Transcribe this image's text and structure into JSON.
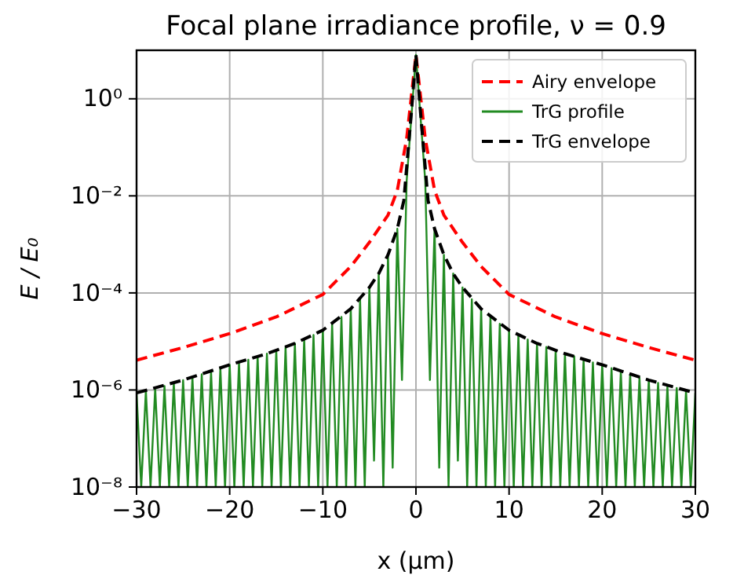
{
  "chart_data": {
    "type": "line",
    "title": "Focal plane irradiance profile, ν = 0.9",
    "xlabel": "x (μm)",
    "ylabel": "E / E₀",
    "log": "y",
    "grid": true,
    "legend": "top right",
    "xlim": [
      -30,
      30
    ],
    "xticks": [
      {
        "value": -30,
        "label": "−30"
      },
      {
        "value": -20,
        "label": "−20"
      },
      {
        "value": -10,
        "label": "−10"
      },
      0,
      10,
      20,
      30
    ],
    "ylim": [
      1e-08,
      10
    ],
    "yticks": [
      {
        "value": 1e-08,
        "label": "10⁻⁸"
      },
      {
        "value": 1e-06,
        "label": "10⁻⁶"
      },
      {
        "value": 0.0001,
        "label": "10⁻⁴"
      },
      {
        "value": 0.01,
        "label": "10⁻²"
      },
      {
        "value": 1,
        "label": "10⁰"
      }
    ],
    "series": [
      {
        "name": "Airy envelope",
        "color": "#ff0000",
        "line_style": "dashed",
        "x": [
          -30,
          -25,
          -20,
          -15,
          -10,
          -7,
          -5,
          -3,
          -2,
          -1,
          0,
          1,
          2,
          3,
          5,
          7,
          10,
          15,
          20,
          25,
          30
        ],
        "values": [
          4.1e-06,
          7.5e-06,
          1.45e-05,
          3.2e-05,
          9.3e-05,
          0.00035,
          0.0011,
          0.004,
          0.013,
          0.15,
          8,
          0.15,
          0.013,
          0.004,
          0.0011,
          0.00035,
          9.3e-05,
          3.2e-05,
          1.45e-05,
          7.5e-06,
          4.1e-06
        ]
      },
      {
        "name": "TrG profile",
        "color": "#228b22",
        "line_style": "solid",
        "x": [
          -30,
          -29.5,
          -29,
          -28.5,
          -28,
          -27.5,
          -27,
          -26.5,
          -26,
          -25.5,
          -25,
          -24.5,
          -24,
          -23.5,
          -23,
          -22.5,
          -22,
          -21.5,
          -21,
          -20.5,
          -20,
          -19.5,
          -19,
          -18.5,
          -18,
          -17.5,
          -17,
          -16.5,
          -16,
          -15.5,
          -15,
          -14.5,
          -14,
          -13.5,
          -13,
          -12.5,
          -12,
          -11.5,
          -11,
          -10.5,
          -10,
          -9.5,
          -9,
          -8.5,
          -8,
          -7.5,
          -7,
          -6.5,
          -6,
          -5.5,
          -5,
          -4.5,
          -4,
          -3.5,
          -3,
          -2.5,
          -2,
          -1.5,
          -1,
          0,
          1,
          1.5,
          2,
          2.5,
          3,
          3.5,
          4,
          4.5,
          5,
          5.5,
          6,
          6.5,
          7,
          7.5,
          8,
          8.5,
          9,
          9.5,
          10,
          10.5,
          11,
          11.5,
          12,
          12.5,
          13,
          13.5,
          14,
          14.5,
          15,
          15.5,
          16,
          16.5,
          17,
          17.5,
          18,
          18.5,
          19,
          19.5,
          20,
          20.5,
          21,
          21.5,
          22,
          22.5,
          23,
          23.5,
          24,
          24.5,
          25,
          25.5,
          26,
          26.5,
          27,
          27.5,
          28,
          28.5,
          29,
          29.5,
          30
        ],
        "values": [
          8.7e-07,
          1e-08,
          9.7e-07,
          1e-08,
          1.1e-06,
          1e-08,
          1.2e-06,
          1e-08,
          1.4e-06,
          1e-08,
          1.6e-06,
          1e-08,
          1.8e-06,
          1e-08,
          2.1e-06,
          1e-08,
          2.4e-06,
          1e-08,
          2.8e-06,
          1e-08,
          3.3e-06,
          1e-08,
          3.7e-06,
          1e-08,
          4.2e-06,
          1e-08,
          4.9e-06,
          1e-08,
          5.6e-06,
          1e-08,
          6.5e-06,
          1e-08,
          7.7e-06,
          1e-08,
          9.1e-06,
          1e-08,
          1.1e-05,
          1e-08,
          1.36e-05,
          1e-08,
          1.7e-05,
          1e-08,
          2.3e-05,
          1e-08,
          3.2e-05,
          1e-08,
          4.7e-05,
          1e-08,
          7.4e-05,
          1e-08,
          0.00013,
          3.5e-08,
          0.00025,
          1e-08,
          0.00061,
          2.5e-08,
          0.0021,
          1.6e-06,
          0.02,
          8,
          0.02,
          1.6e-06,
          0.0021,
          2.5e-08,
          0.00061,
          1e-08,
          0.00025,
          3.5e-08,
          0.00013,
          1e-08,
          7.4e-05,
          1e-08,
          4.7e-05,
          1e-08,
          3.2e-05,
          1e-08,
          2.3e-05,
          1e-08,
          1.7e-05,
          1e-08,
          1.36e-05,
          1e-08,
          1.1e-05,
          1e-08,
          9.1e-06,
          1e-08,
          7.7e-06,
          1e-08,
          6.5e-06,
          1e-08,
          5.6e-06,
          1e-08,
          4.9e-06,
          1e-08,
          4.2e-06,
          1e-08,
          3.7e-06,
          1e-08,
          3.3e-06,
          1e-08,
          2.8e-06,
          1e-08,
          2.4e-06,
          1e-08,
          2.1e-06,
          1e-08,
          1.8e-06,
          1e-08,
          1.6e-06,
          1e-08,
          1.4e-06,
          1e-08,
          1.2e-06,
          1e-08,
          1.1e-06,
          1e-08,
          9.7e-07,
          1e-08,
          8.7e-07
        ]
      },
      {
        "name": "TrG envelope",
        "color": "#000000",
        "line_style": "dashed",
        "x": [
          -30,
          -25,
          -20,
          -16,
          -13,
          -10,
          -7,
          -5,
          -4,
          -3,
          -2,
          -1.3,
          -0.5,
          0,
          0.5,
          1.3,
          2,
          3,
          4,
          5,
          7,
          10,
          13,
          16,
          20,
          25,
          30
        ],
        "values": [
          8.7e-07,
          1.6e-06,
          3.3e-06,
          5.6e-06,
          9.1e-06,
          1.7e-05,
          4.7e-05,
          0.00013,
          0.00025,
          0.00061,
          0.0021,
          0.008,
          0.5,
          8,
          0.5,
          0.008,
          0.0021,
          0.00061,
          0.00025,
          0.00013,
          4.7e-05,
          1.7e-05,
          9.1e-06,
          5.6e-06,
          3.3e-06,
          1.6e-06,
          8.7e-07
        ]
      }
    ]
  }
}
